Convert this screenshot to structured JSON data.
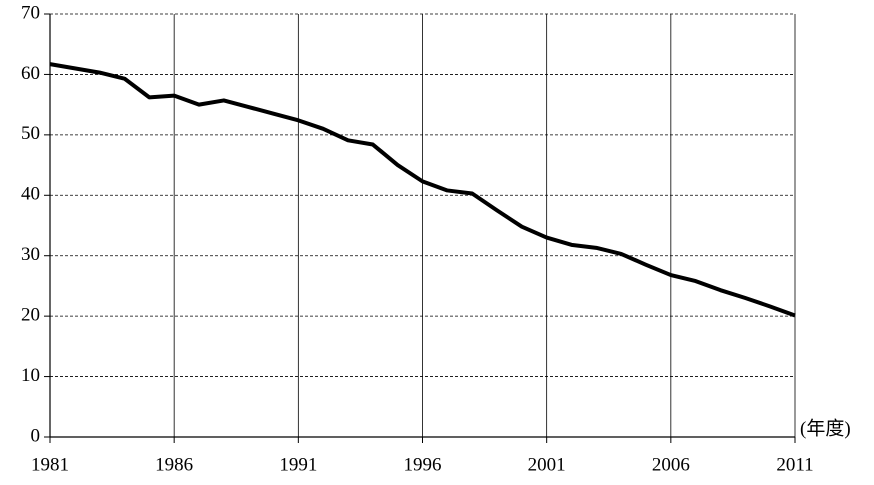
{
  "chart_data": {
    "type": "line",
    "x_label": "(年度)",
    "x": [
      1981,
      1982,
      1983,
      1984,
      1985,
      1986,
      1987,
      1988,
      1989,
      1990,
      1991,
      1992,
      1993,
      1994,
      1995,
      1996,
      1997,
      1998,
      1999,
      2000,
      2001,
      2002,
      2003,
      2004,
      2005,
      2006,
      2007,
      2008,
      2009,
      2010,
      2011
    ],
    "series": [
      {
        "color": "#000000",
        "values": [
          61.7,
          61.0,
          60.3,
          59.3,
          56.2,
          56.5,
          55.0,
          55.7,
          54.6,
          53.5,
          52.4,
          51.0,
          49.1,
          48.4,
          45.0,
          42.3,
          40.8,
          40.3,
          37.5,
          34.8,
          33.0,
          31.8,
          31.3,
          30.3,
          28.5,
          26.8,
          25.8,
          24.3,
          23.0,
          21.6,
          20.1
        ]
      }
    ],
    "xlim": [
      1981,
      2011
    ],
    "xticks": [
      1981,
      1986,
      1991,
      1996,
      2001,
      2006,
      2011
    ],
    "ylim": [
      0,
      70
    ],
    "yticks": [
      0,
      10,
      20,
      30,
      40,
      50,
      60,
      70
    ],
    "grid": true
  }
}
